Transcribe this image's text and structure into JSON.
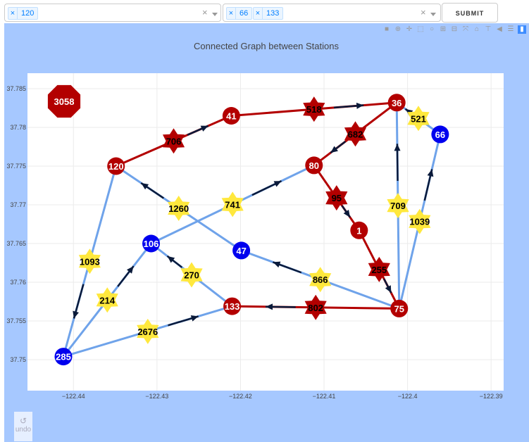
{
  "controls": {
    "source_select": {
      "tags": [
        "120"
      ]
    },
    "target_select": {
      "tags": [
        "66",
        "133"
      ]
    },
    "clear_glyph": "×",
    "tag_remove_glyph": "×",
    "submit_label": "SUBMIT"
  },
  "modebar": {
    "icons": [
      "camera-icon",
      "zoom-icon",
      "pan-icon",
      "box-select-icon",
      "lasso-icon",
      "zoom-in-icon",
      "zoom-out-icon",
      "autoscale-icon",
      "home-icon",
      "spike-icon",
      "hover-closest-icon",
      "hover-compare-icon",
      "plotly-logo-icon"
    ]
  },
  "undo": {
    "label": "undo"
  },
  "chart_data": {
    "type": "scatter",
    "title": "Connected Graph between Stations",
    "xlabel": "",
    "ylabel": "",
    "xlim": [
      -122.4455,
      -122.3885
    ],
    "ylim": [
      37.746,
      37.787
    ],
    "x_ticks": [
      -122.44,
      -122.43,
      -122.42,
      -122.41,
      -122.4,
      -122.39
    ],
    "x_tick_labels": [
      "−122.44",
      "−122.43",
      "−122.42",
      "−122.41",
      "−122.4",
      "−122.39"
    ],
    "y_ticks": [
      37.75,
      37.755,
      37.76,
      37.765,
      37.77,
      37.775,
      37.78,
      37.785
    ],
    "y_tick_labels": [
      "37.75",
      "37.755",
      "37.76",
      "37.765",
      "37.77",
      "37.775",
      "37.78",
      "37.785"
    ],
    "grid": true,
    "colors": {
      "path": "#b30000",
      "station_red": "#b30000",
      "station_blue": "#0000ee",
      "edge_blue": "#6fa3ea",
      "arrow": "#0a1a3a",
      "weight_yellow": "#ffe83d",
      "weight_red": "#b30000"
    },
    "stations": [
      {
        "id": "120",
        "x": -122.4349,
        "y": 37.775,
        "color": "red"
      },
      {
        "id": "41",
        "x": -122.4211,
        "y": 37.7815,
        "color": "red"
      },
      {
        "id": "36",
        "x": -122.4013,
        "y": 37.7832,
        "color": "red"
      },
      {
        "id": "66",
        "x": -122.3961,
        "y": 37.7791,
        "color": "blue"
      },
      {
        "id": "80",
        "x": -122.4112,
        "y": 37.7751,
        "color": "red"
      },
      {
        "id": "1",
        "x": -122.4058,
        "y": 37.7667,
        "color": "red"
      },
      {
        "id": "75",
        "x": -122.401,
        "y": 37.7566,
        "color": "red"
      },
      {
        "id": "47",
        "x": -122.4199,
        "y": 37.7641,
        "color": "blue"
      },
      {
        "id": "106",
        "x": -122.4307,
        "y": 37.765,
        "color": "blue"
      },
      {
        "id": "133",
        "x": -122.421,
        "y": 37.7569,
        "color": "red"
      },
      {
        "id": "285",
        "x": -122.4412,
        "y": 37.7504,
        "color": "blue"
      }
    ],
    "edges": [
      {
        "from": "120",
        "to": "41",
        "weight": "706",
        "on_path": true
      },
      {
        "from": "41",
        "to": "36",
        "weight": "518",
        "on_path": true
      },
      {
        "from": "36",
        "to": "80",
        "weight": "682",
        "on_path": true
      },
      {
        "from": "80",
        "to": "1",
        "weight": "95",
        "on_path": true
      },
      {
        "from": "1",
        "to": "75",
        "weight": "255",
        "on_path": true
      },
      {
        "from": "75",
        "to": "133",
        "weight": "802",
        "on_path": true
      },
      {
        "from": "66",
        "to": "36",
        "weight": "521",
        "on_path": false
      },
      {
        "from": "75",
        "to": "36",
        "weight": "709",
        "on_path": false
      },
      {
        "from": "75",
        "to": "66",
        "weight": "1039",
        "on_path": false
      },
      {
        "from": "75",
        "to": "47",
        "weight": "866",
        "on_path": false
      },
      {
        "from": "47",
        "to": "120",
        "weight": "1260",
        "on_path": false
      },
      {
        "from": "106",
        "to": "80",
        "weight": "741",
        "on_path": false
      },
      {
        "from": "133",
        "to": "106",
        "weight": "270",
        "on_path": false
      },
      {
        "from": "285",
        "to": "106",
        "weight": "214",
        "on_path": false
      },
      {
        "from": "285",
        "to": "133",
        "weight": "2676",
        "on_path": false
      },
      {
        "from": "120",
        "to": "285",
        "weight": "1093",
        "on_path": false
      }
    ],
    "total": "3058"
  }
}
